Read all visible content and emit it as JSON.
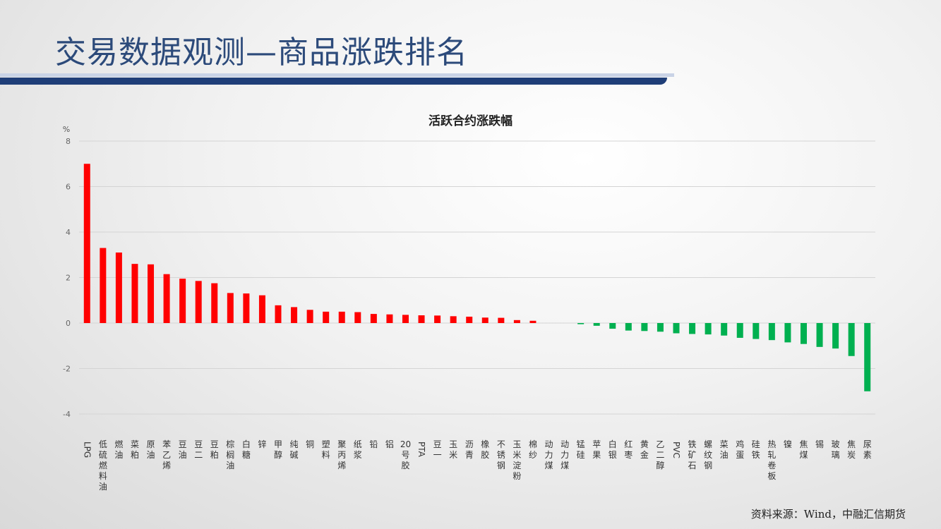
{
  "slide": {
    "title": "交易数据观测—商品涨跌排名",
    "source": "资料来源：Wind，中融汇信期货"
  },
  "colors": {
    "up": "#ff0000",
    "down": "#00b050",
    "title": "#2c4a7a",
    "bar": "#1f3e78"
  },
  "chart_data": {
    "type": "bar",
    "title": "活跃合约涨跌幅",
    "ylabel": "%",
    "ylim": [
      -4,
      8
    ],
    "yticks": [
      -4,
      -2,
      0,
      2,
      4,
      6,
      8
    ],
    "grid": true,
    "categories": [
      "LPG",
      "低硫燃料油",
      "燃油",
      "菜粕",
      "原油",
      "苯乙烯",
      "豆油",
      "豆二",
      "豆粕",
      "棕榈油",
      "白糖",
      "锌",
      "甲醇",
      "纯碱",
      "铜",
      "塑料",
      "聚丙烯",
      "纸浆",
      "铅",
      "铝",
      "20号胶",
      "PTA",
      "豆一",
      "玉米",
      "沥青",
      "橡胶",
      "不锈钢",
      "玉米淀粉",
      "棉纱",
      "动力煤",
      "动力煤",
      "锰硅",
      "苹果",
      "白银",
      "红枣",
      "黄金",
      "乙二醇",
      "PVC",
      "铁矿石",
      "螺纹钢",
      "菜油",
      "鸡蛋",
      "硅铁",
      "热轧卷板",
      "镍",
      "焦煤",
      "锡",
      "玻璃",
      "焦炭",
      "尿素"
    ],
    "values": [
      7.0,
      3.3,
      3.1,
      2.6,
      2.58,
      2.15,
      1.95,
      1.85,
      1.75,
      1.32,
      1.3,
      1.22,
      0.78,
      0.7,
      0.58,
      0.5,
      0.5,
      0.48,
      0.4,
      0.38,
      0.36,
      0.34,
      0.33,
      0.3,
      0.28,
      0.24,
      0.23,
      0.13,
      0.1,
      0.0,
      0.0,
      -0.05,
      -0.12,
      -0.25,
      -0.33,
      -0.35,
      -0.38,
      -0.45,
      -0.48,
      -0.5,
      -0.55,
      -0.65,
      -0.7,
      -0.75,
      -0.85,
      -0.92,
      -1.05,
      -1.12,
      -1.45,
      -3.0
    ]
  }
}
